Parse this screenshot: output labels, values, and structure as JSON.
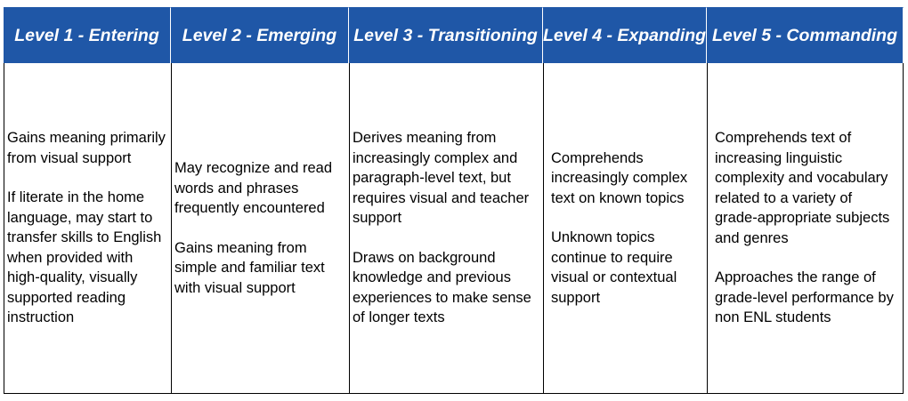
{
  "headers": [
    "Level 1 - Entering",
    "Level 2 - Emerging",
    "Level 3 - Transitioning",
    "Level 4 - Expanding",
    "Level 5 - Commanding"
  ],
  "columns": [
    [
      "Gains meaning primarily from visual support",
      "If literate in the home language, may start to transfer skills to English when provided with high-quality, visually supported reading instruction"
    ],
    [
      "May recognize and read words and phrases frequently encountered",
      "Gains meaning from simple and familiar text with visual support"
    ],
    [
      "Derives meaning from increasingly complex and paragraph-level text, but requires visual and teacher support",
      "Draws on background knowledge and previous experiences to make sense of longer texts"
    ],
    [
      "Comprehends increasingly complex text on known topics",
      "Unknown topics continue to require visual or contextual support"
    ],
    [
      "Comprehends text of increasing linguistic complexity and vocabulary related to a variety of grade-appropriate subjects and genres",
      "Approaches the range of grade-level performance by non ENL students"
    ]
  ],
  "colors": {
    "header_bg": "#1f57a7",
    "header_text": "#ffffff",
    "border": "#000000"
  }
}
